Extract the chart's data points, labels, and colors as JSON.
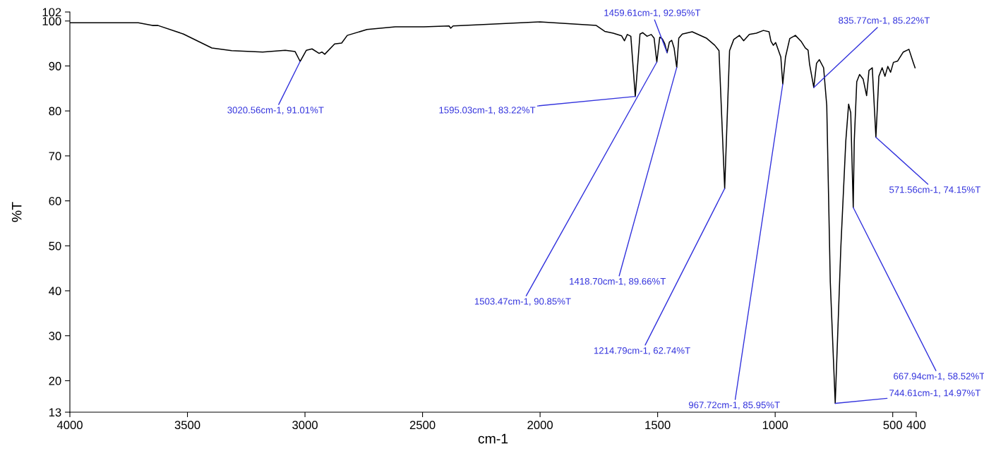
{
  "chart_data": {
    "type": "line",
    "xlabel": "cm-1",
    "ylabel": "%T",
    "xlim": [
      4000,
      400
    ],
    "xticks": [
      4000,
      3500,
      3000,
      2500,
      2000,
      1500,
      1000,
      500,
      400
    ],
    "ylim": [
      13,
      102
    ],
    "yticks": [
      13,
      20,
      30,
      40,
      50,
      60,
      70,
      80,
      90,
      100,
      102
    ],
    "grid": false,
    "marker": "none",
    "line_style": "solid",
    "series": [
      {
        "color": "#000000",
        "x": [
          4000,
          3709,
          3649,
          3625,
          3517,
          3396,
          3312,
          3180,
          3084,
          3042,
          3020.56,
          2994,
          2970,
          2940,
          2928,
          2916,
          2874,
          2844,
          2820,
          2736,
          2616,
          2495,
          2387,
          2380,
          2370,
          2241,
          2001,
          1761,
          1725,
          1689,
          1653,
          1641,
          1629,
          1614,
          1595.03,
          1575,
          1563,
          1545,
          1527,
          1515,
          1503.47,
          1491,
          1480,
          1470,
          1459.61,
          1450,
          1440,
          1430,
          1418.7,
          1410,
          1395,
          1353,
          1293,
          1257,
          1239,
          1214.79,
          1194,
          1176,
          1152,
          1134,
          1110,
          1080,
          1050,
          1026,
          1018,
          1008,
          998,
          976,
          967.72,
          956,
          938,
          914,
          890,
          872,
          860,
          854,
          835.77,
          824,
          812,
          794,
          780.6,
          765.6,
          744.61,
          720.6,
          699.6,
          687.6,
          678.6,
          667.94,
          663.6,
          653,
          641,
          626,
          611,
          601,
          587,
          571.56,
          559,
          545,
          533,
          521,
          509,
          497,
          479,
          455,
          431,
          413,
          405
        ],
        "values": [
          99.6,
          99.6,
          99.0,
          99.0,
          97.1,
          94.0,
          93.4,
          93.1,
          93.5,
          93.2,
          91.01,
          93.5,
          93.8,
          92.8,
          93.1,
          92.6,
          94.9,
          95.1,
          96.8,
          98.1,
          98.7,
          98.7,
          98.9,
          98.4,
          98.9,
          99.2,
          99.8,
          99.0,
          97.7,
          97.3,
          96.7,
          95.6,
          97.0,
          96.6,
          83.22,
          97.1,
          97.4,
          96.6,
          97.0,
          96.2,
          90.85,
          96.4,
          96.0,
          95.0,
          92.95,
          95.3,
          95.7,
          94.0,
          89.66,
          96.2,
          97.1,
          97.6,
          96.2,
          94.6,
          93.4,
          62.74,
          93.4,
          95.9,
          96.8,
          95.6,
          97.0,
          97.3,
          97.9,
          97.6,
          95.5,
          94.6,
          95.2,
          92.0,
          85.95,
          92.0,
          96.1,
          96.8,
          95.5,
          94.0,
          93.5,
          90.5,
          85.22,
          90.6,
          91.4,
          89.6,
          81.2,
          42.0,
          14.97,
          49.8,
          73.3,
          81.5,
          79.6,
          58.52,
          73.3,
          86.5,
          88.1,
          87.1,
          83.4,
          89.0,
          89.6,
          74.15,
          87.7,
          89.6,
          87.7,
          89.9,
          88.6,
          90.8,
          91.1,
          93.1,
          93.7,
          90.8,
          89.6
        ]
      }
    ],
    "annotations": [
      {
        "text": "3020.56cm-1, 91.01%T",
        "x": 3020.56,
        "y": 91.01
      },
      {
        "text": "1595.03cm-1, 83.22%T",
        "x": 1595.03,
        "y": 83.22
      },
      {
        "text": "1459.61cm-1, 92.95%T",
        "x": 1459.61,
        "y": 92.95
      },
      {
        "text": "835.77cm-1, 85.22%T",
        "x": 835.77,
        "y": 85.22
      },
      {
        "text": "1503.47cm-1, 90.85%T",
        "x": 1503.47,
        "y": 90.85
      },
      {
        "text": "1418.70cm-1, 89.66%T",
        "x": 1418.7,
        "y": 89.66
      },
      {
        "text": "1214.79cm-1, 62.74%T",
        "x": 1214.79,
        "y": 62.74
      },
      {
        "text": "967.72cm-1, 85.95%T",
        "x": 967.72,
        "y": 85.95
      },
      {
        "text": "571.56cm-1, 74.15%T",
        "x": 571.56,
        "y": 74.15
      },
      {
        "text": "667.94cm-1, 58.52%T",
        "x": 667.94,
        "y": 58.52
      },
      {
        "text": "744.61cm-1, 14.97%T",
        "x": 744.61,
        "y": 14.97
      }
    ]
  }
}
